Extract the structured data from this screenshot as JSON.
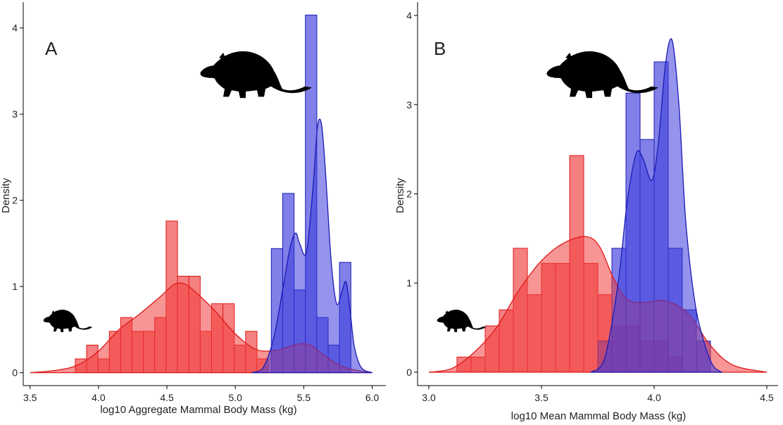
{
  "colors": {
    "red_fill": "#f03c3c",
    "red_stroke": "#e01818",
    "blue_fill": "#3c3cdc",
    "blue_stroke": "#1a1ab4",
    "silhouette": "#000000",
    "axis": "#000000"
  },
  "icons": [
    "armadillo-silhouette-large-icon",
    "armadillo-silhouette-small-icon"
  ],
  "chart_data": [
    {
      "type": "histogram+density",
      "panel_label": "A",
      "xlabel": "log10 Aggregate Mammal Body Mass (kg)",
      "ylabel": "Density",
      "xlim": [
        3.45,
        6.1
      ],
      "ylim": [
        -0.15,
        4.3
      ],
      "x_ticks": [
        3.5,
        4.0,
        4.5,
        5.0,
        5.5,
        6.0
      ],
      "x_tick_labels": [
        "3.5",
        "4.0",
        "4.5",
        "5.0",
        "5.5",
        "6.0"
      ],
      "y_ticks": [
        0,
        1,
        2,
        3,
        4
      ],
      "y_tick_labels": [
        "0",
        "1",
        "2",
        "3",
        "4"
      ],
      "grid": false,
      "series": [
        {
          "color": "red",
          "bin_width": 0.0833,
          "bins": [
            {
              "start": 3.83,
              "height": 0.16
            },
            {
              "start": 3.913,
              "height": 0.32
            },
            {
              "start": 3.996,
              "height": 0.16
            },
            {
              "start": 4.079,
              "height": 0.48
            },
            {
              "start": 4.162,
              "height": 0.64
            },
            {
              "start": 4.245,
              "height": 0.48
            },
            {
              "start": 4.328,
              "height": 0.48
            },
            {
              "start": 4.411,
              "height": 0.64
            },
            {
              "start": 4.494,
              "height": 1.76
            },
            {
              "start": 4.577,
              "height": 1.12
            },
            {
              "start": 4.66,
              "height": 1.12
            },
            {
              "start": 4.743,
              "height": 0.48
            },
            {
              "start": 4.826,
              "height": 0.8
            },
            {
              "start": 4.909,
              "height": 0.8
            },
            {
              "start": 4.992,
              "height": 0.32
            },
            {
              "start": 5.075,
              "height": 0.48
            },
            {
              "start": 5.158,
              "height": 0.16
            }
          ],
          "density": {
            "x": [
              3.5,
              3.7,
              3.85,
              4.0,
              4.15,
              4.3,
              4.45,
              4.55,
              4.63,
              4.72,
              4.85,
              5.0,
              5.15,
              5.3,
              5.45,
              5.55,
              5.65,
              5.8,
              6.0
            ],
            "y": [
              0.0,
              0.03,
              0.09,
              0.25,
              0.5,
              0.68,
              0.88,
              1.02,
              1.03,
              0.92,
              0.72,
              0.45,
              0.27,
              0.26,
              0.33,
              0.32,
              0.2,
              0.06,
              0.0
            ]
          }
        },
        {
          "color": "blue",
          "bin_width": 0.0833,
          "bins": [
            {
              "start": 5.263,
              "height": 1.44
            },
            {
              "start": 5.346,
              "height": 2.08
            },
            {
              "start": 5.429,
              "height": 0.96
            },
            {
              "start": 5.512,
              "height": 4.15
            },
            {
              "start": 5.595,
              "height": 0.64
            },
            {
              "start": 5.678,
              "height": 0.32
            },
            {
              "start": 5.761,
              "height": 1.28
            }
          ],
          "density": {
            "x": [
              5.12,
              5.2,
              5.28,
              5.35,
              5.4,
              5.44,
              5.47,
              5.52,
              5.57,
              5.6,
              5.63,
              5.66,
              5.7,
              5.74,
              5.78,
              5.81,
              5.84,
              5.87,
              5.92,
              6.0
            ],
            "y": [
              0.0,
              0.05,
              0.4,
              1.0,
              1.45,
              1.62,
              1.5,
              1.4,
              2.2,
              2.85,
              2.88,
              2.3,
              1.3,
              0.8,
              0.95,
              1.05,
              0.7,
              0.3,
              0.06,
              0.0
            ]
          }
        }
      ]
    },
    {
      "type": "histogram+density",
      "panel_label": "B",
      "xlabel": "log10 Mean Mammal Body Mass (kg)",
      "ylabel": "Density",
      "xlim": [
        2.95,
        4.55
      ],
      "ylim": [
        -0.15,
        4.15
      ],
      "x_ticks": [
        3.0,
        3.5,
        4.0,
        4.5
      ],
      "x_tick_labels": [
        "3.0",
        "3.5",
        "4.0",
        "4.5"
      ],
      "y_ticks": [
        0,
        1,
        2,
        3,
        4
      ],
      "y_tick_labels": [
        "0",
        "1",
        "2",
        "3",
        "4"
      ],
      "grid": false,
      "series": [
        {
          "color": "red",
          "bin_width": 0.0625,
          "bins": [
            {
              "start": 3.125,
              "height": 0.17
            },
            {
              "start": 3.1875,
              "height": 0.17
            },
            {
              "start": 3.25,
              "height": 0.52
            },
            {
              "start": 3.3125,
              "height": 0.7
            },
            {
              "start": 3.375,
              "height": 1.39
            },
            {
              "start": 3.4375,
              "height": 0.87
            },
            {
              "start": 3.5,
              "height": 1.22
            },
            {
              "start": 3.5625,
              "height": 1.22
            },
            {
              "start": 3.625,
              "height": 2.43
            },
            {
              "start": 3.6875,
              "height": 1.22
            },
            {
              "start": 3.75,
              "height": 0.87
            },
            {
              "start": 3.8125,
              "height": 0.52
            },
            {
              "start": 3.875,
              "height": 0.52
            },
            {
              "start": 3.9375,
              "height": 0.35
            },
            {
              "start": 4.0,
              "height": 0.35
            },
            {
              "start": 4.0625,
              "height": 0.17
            }
          ],
          "density": {
            "x": [
              3.0,
              3.1,
              3.2,
              3.3,
              3.4,
              3.5,
              3.6,
              3.7,
              3.76,
              3.82,
              3.88,
              3.95,
              4.05,
              4.15,
              4.25,
              4.35,
              4.5
            ],
            "y": [
              0.0,
              0.04,
              0.22,
              0.5,
              0.92,
              1.25,
              1.45,
              1.52,
              1.4,
              1.05,
              0.82,
              0.78,
              0.8,
              0.66,
              0.3,
              0.08,
              0.0
            ]
          }
        },
        {
          "color": "blue",
          "bin_width": 0.0625,
          "bins": [
            {
              "start": 3.75,
              "height": 0.35
            },
            {
              "start": 3.8125,
              "height": 1.39
            },
            {
              "start": 3.875,
              "height": 3.13
            },
            {
              "start": 3.9375,
              "height": 2.61
            },
            {
              "start": 4.0,
              "height": 3.48
            },
            {
              "start": 4.0625,
              "height": 1.39
            },
            {
              "start": 4.125,
              "height": 0.7
            },
            {
              "start": 4.1875,
              "height": 0.35
            }
          ],
          "density": {
            "x": [
              3.72,
              3.78,
              3.84,
              3.88,
              3.92,
              3.95,
              3.99,
              4.02,
              4.05,
              4.08,
              4.11,
              4.14,
              4.18,
              4.22,
              4.26,
              4.3
            ],
            "y": [
              0.0,
              0.15,
              1.0,
              1.9,
              2.45,
              2.4,
              2.15,
              2.6,
              3.45,
              3.72,
              3.0,
              1.7,
              0.8,
              0.35,
              0.08,
              0.0
            ]
          }
        }
      ]
    }
  ]
}
